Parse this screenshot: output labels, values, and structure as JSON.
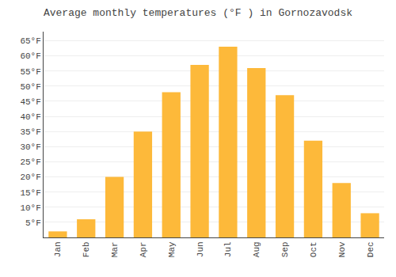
{
  "chart_data": {
    "type": "bar",
    "title": "Average monthly temperatures (°F ) in Gornozavodsk",
    "categories": [
      "Jan",
      "Feb",
      "Mar",
      "Apr",
      "May",
      "Jun",
      "Jul",
      "Aug",
      "Sep",
      "Oct",
      "Nov",
      "Dec"
    ],
    "values": [
      2,
      6,
      20,
      35,
      48,
      57,
      63,
      56,
      47,
      32,
      18,
      8
    ],
    "color": "#FDB93A",
    "ylim": [
      0,
      68
    ],
    "yticks": [
      {
        "value": 5,
        "label": "5°F"
      },
      {
        "value": 10,
        "label": "10°F"
      },
      {
        "value": 15,
        "label": "15°F"
      },
      {
        "value": 20,
        "label": "20°F"
      },
      {
        "value": 25,
        "label": "25°F"
      },
      {
        "value": 30,
        "label": "30°F"
      },
      {
        "value": 35,
        "label": "35°F"
      },
      {
        "value": 40,
        "label": "40°F"
      },
      {
        "value": 45,
        "label": "45°F"
      },
      {
        "value": 50,
        "label": "50°F"
      },
      {
        "value": 55,
        "label": "55°F"
      },
      {
        "value": 60,
        "label": "60°F"
      },
      {
        "value": 65,
        "label": "65°F"
      }
    ],
    "grid": true
  }
}
